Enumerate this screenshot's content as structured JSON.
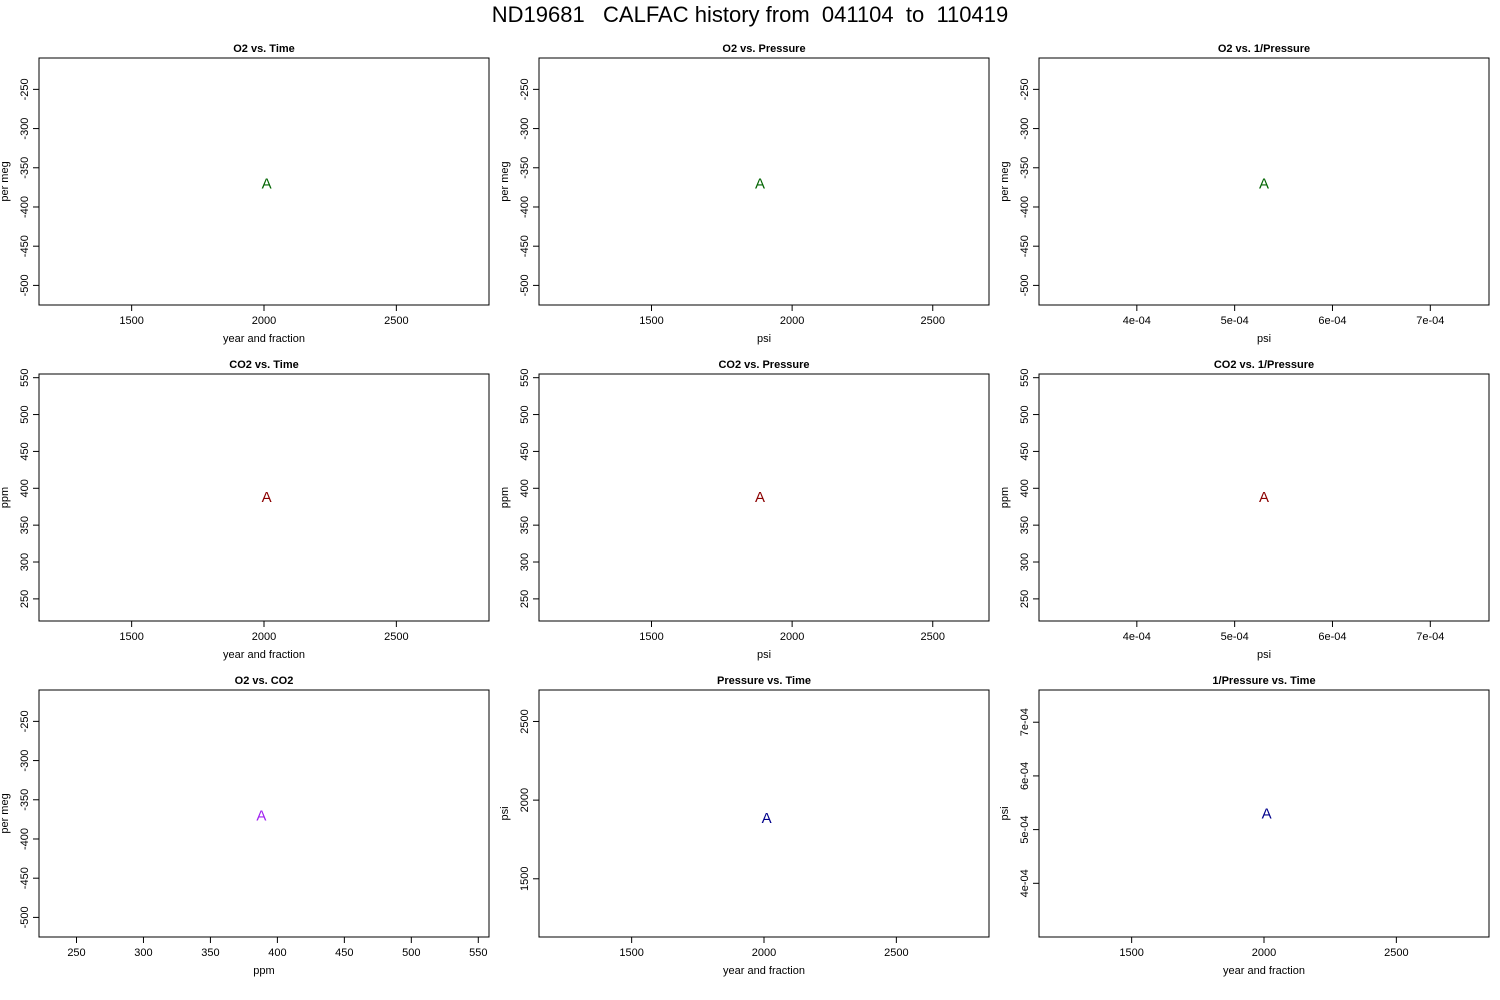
{
  "page": {
    "title": "ND19681   CALFAC history from  041104  to  110419"
  },
  "colors": {
    "o2": "#006400",
    "co2": "#8b0000",
    "o2_vs_co2": "#a020f0",
    "pressure": "#00008b"
  },
  "chart_data": [
    {
      "type": "scatter",
      "title": "O2 vs. Time",
      "xlabel": "year and fraction",
      "ylabel": "per meg",
      "xlim": [
        1150,
        2850
      ],
      "ylim": [
        -525,
        -210
      ],
      "xticks": [
        1500,
        2000,
        2500
      ],
      "xtick_labels": [
        "1500",
        "2000",
        "2500"
      ],
      "yticks": [
        -500,
        -450,
        -400,
        -350,
        -300,
        -250
      ],
      "ytick_labels": [
        "-500",
        "-450",
        "-400",
        "-350",
        "-300",
        "-250"
      ],
      "grid": false,
      "color_key": "o2",
      "points": [
        {
          "x": 2010,
          "y": -370,
          "label": "A"
        }
      ]
    },
    {
      "type": "scatter",
      "title": "O2 vs. Pressure",
      "xlabel": "psi",
      "ylabel": "per meg",
      "xlim": [
        1100,
        2700
      ],
      "ylim": [
        -525,
        -210
      ],
      "xticks": [
        1500,
        2000,
        2500
      ],
      "xtick_labels": [
        "1500",
        "2000",
        "2500"
      ],
      "yticks": [
        -500,
        -450,
        -400,
        -350,
        -300,
        -250
      ],
      "ytick_labels": [
        "-500",
        "-450",
        "-400",
        "-350",
        "-300",
        "-250"
      ],
      "grid": false,
      "color_key": "o2",
      "points": [
        {
          "x": 1886,
          "y": -370,
          "label": "A"
        }
      ]
    },
    {
      "type": "scatter",
      "title": "O2 vs. 1/Pressure",
      "xlabel": "psi",
      "ylabel": "per meg",
      "xlim": [
        0.0003,
        0.00076
      ],
      "ylim": [
        -525,
        -210
      ],
      "xticks": [
        0.0004,
        0.0005,
        0.0006,
        0.0007
      ],
      "xtick_labels": [
        "4e-04",
        "5e-04",
        "6e-04",
        "7e-04"
      ],
      "yticks": [
        -500,
        -450,
        -400,
        -350,
        -300,
        -250
      ],
      "ytick_labels": [
        "-500",
        "-450",
        "-400",
        "-350",
        "-300",
        "-250"
      ],
      "grid": false,
      "color_key": "o2",
      "points": [
        {
          "x": 0.00053,
          "y": -370,
          "label": "A"
        }
      ]
    },
    {
      "type": "scatter",
      "title": "CO2 vs. Time",
      "xlabel": "year and fraction",
      "ylabel": "ppm",
      "xlim": [
        1150,
        2850
      ],
      "ylim": [
        220,
        555
      ],
      "xticks": [
        1500,
        2000,
        2500
      ],
      "xtick_labels": [
        "1500",
        "2000",
        "2500"
      ],
      "yticks": [
        250,
        300,
        350,
        400,
        450,
        500,
        550
      ],
      "ytick_labels": [
        "250",
        "300",
        "350",
        "400",
        "450",
        "500",
        "550"
      ],
      "grid": false,
      "color_key": "co2",
      "points": [
        {
          "x": 2010,
          "y": 388,
          "label": "A"
        }
      ]
    },
    {
      "type": "scatter",
      "title": "CO2 vs. Pressure",
      "xlabel": "psi",
      "ylabel": "ppm",
      "xlim": [
        1100,
        2700
      ],
      "ylim": [
        220,
        555
      ],
      "xticks": [
        1500,
        2000,
        2500
      ],
      "xtick_labels": [
        "1500",
        "2000",
        "2500"
      ],
      "yticks": [
        250,
        300,
        350,
        400,
        450,
        500,
        550
      ],
      "ytick_labels": [
        "250",
        "300",
        "350",
        "400",
        "450",
        "500",
        "550"
      ],
      "grid": false,
      "color_key": "co2",
      "points": [
        {
          "x": 1886,
          "y": 388,
          "label": "A"
        }
      ]
    },
    {
      "type": "scatter",
      "title": "CO2 vs. 1/Pressure",
      "xlabel": "psi",
      "ylabel": "ppm",
      "xlim": [
        0.0003,
        0.00076
      ],
      "ylim": [
        220,
        555
      ],
      "xticks": [
        0.0004,
        0.0005,
        0.0006,
        0.0007
      ],
      "xtick_labels": [
        "4e-04",
        "5e-04",
        "6e-04",
        "7e-04"
      ],
      "yticks": [
        250,
        300,
        350,
        400,
        450,
        500,
        550
      ],
      "ytick_labels": [
        "250",
        "300",
        "350",
        "400",
        "450",
        "500",
        "550"
      ],
      "grid": false,
      "color_key": "co2",
      "points": [
        {
          "x": 0.00053,
          "y": 388,
          "label": "A"
        }
      ]
    },
    {
      "type": "scatter",
      "title": "O2 vs. CO2",
      "xlabel": "ppm",
      "ylabel": "per meg",
      "xlim": [
        222,
        558
      ],
      "ylim": [
        -525,
        -210
      ],
      "xticks": [
        250,
        300,
        350,
        400,
        450,
        500,
        550
      ],
      "xtick_labels": [
        "250",
        "300",
        "350",
        "400",
        "450",
        "500",
        "550"
      ],
      "yticks": [
        -500,
        -450,
        -400,
        -350,
        -300,
        -250
      ],
      "ytick_labels": [
        "-500",
        "-450",
        "-400",
        "-350",
        "-300",
        "-250"
      ],
      "grid": false,
      "color_key": "o2_vs_co2",
      "points": [
        {
          "x": 388,
          "y": -370,
          "label": "A"
        }
      ]
    },
    {
      "type": "scatter",
      "title": "Pressure vs. Time",
      "xlabel": "year and fraction",
      "ylabel": "psi",
      "xlim": [
        1150,
        2850
      ],
      "ylim": [
        1130,
        2700
      ],
      "xticks": [
        1500,
        2000,
        2500
      ],
      "xtick_labels": [
        "1500",
        "2000",
        "2500"
      ],
      "yticks": [
        1500,
        2000,
        2500
      ],
      "ytick_labels": [
        "1500",
        "2000",
        "2500"
      ],
      "grid": false,
      "color_key": "pressure",
      "points": [
        {
          "x": 2010,
          "y": 1886,
          "label": "A"
        }
      ]
    },
    {
      "type": "scatter",
      "title": "1/Pressure vs. Time",
      "xlabel": "year and fraction",
      "ylabel": "psi",
      "xlim": [
        1150,
        2850
      ],
      "ylim": [
        0.0003,
        0.00076
      ],
      "xticks": [
        1500,
        2000,
        2500
      ],
      "xtick_labels": [
        "1500",
        "2000",
        "2500"
      ],
      "yticks": [
        0.0004,
        0.0005,
        0.0006,
        0.0007
      ],
      "ytick_labels": [
        "4e-04",
        "5e-04",
        "6e-04",
        "7e-04"
      ],
      "grid": false,
      "color_key": "pressure",
      "points": [
        {
          "x": 2010,
          "y": 0.00053,
          "label": "A"
        }
      ]
    }
  ]
}
